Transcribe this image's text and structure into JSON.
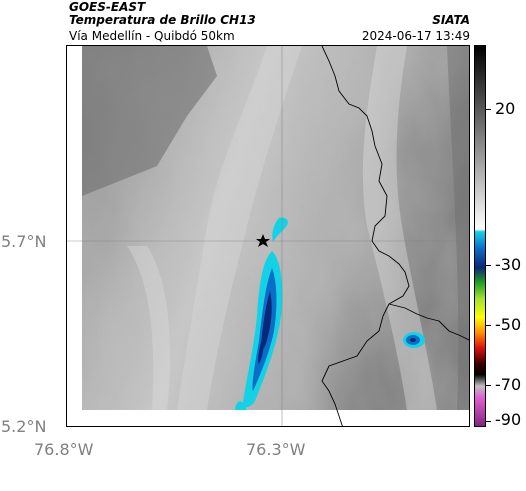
{
  "header": {
    "line1": "GOES-EAST",
    "line2": "Temperatura de Brillo CH13",
    "line3": "Vía Medellín - Quibdó 50km",
    "org": "SIATA",
    "timestamp": "2024-06-17 13:49"
  },
  "axes": {
    "lat_labels": [
      "5.7°N",
      "5.2°N"
    ],
    "lon_labels": [
      "76.8°W",
      "76.3°W"
    ]
  },
  "colorbar": {
    "tick_labels": [
      "20",
      "-30",
      "-50",
      "-70",
      "-90"
    ]
  },
  "colors": {
    "cold_cyan": "#14d2e6",
    "cold_blue": "#0a6ec8",
    "cold_navy": "#0a2878",
    "station_marker": "#000000"
  }
}
